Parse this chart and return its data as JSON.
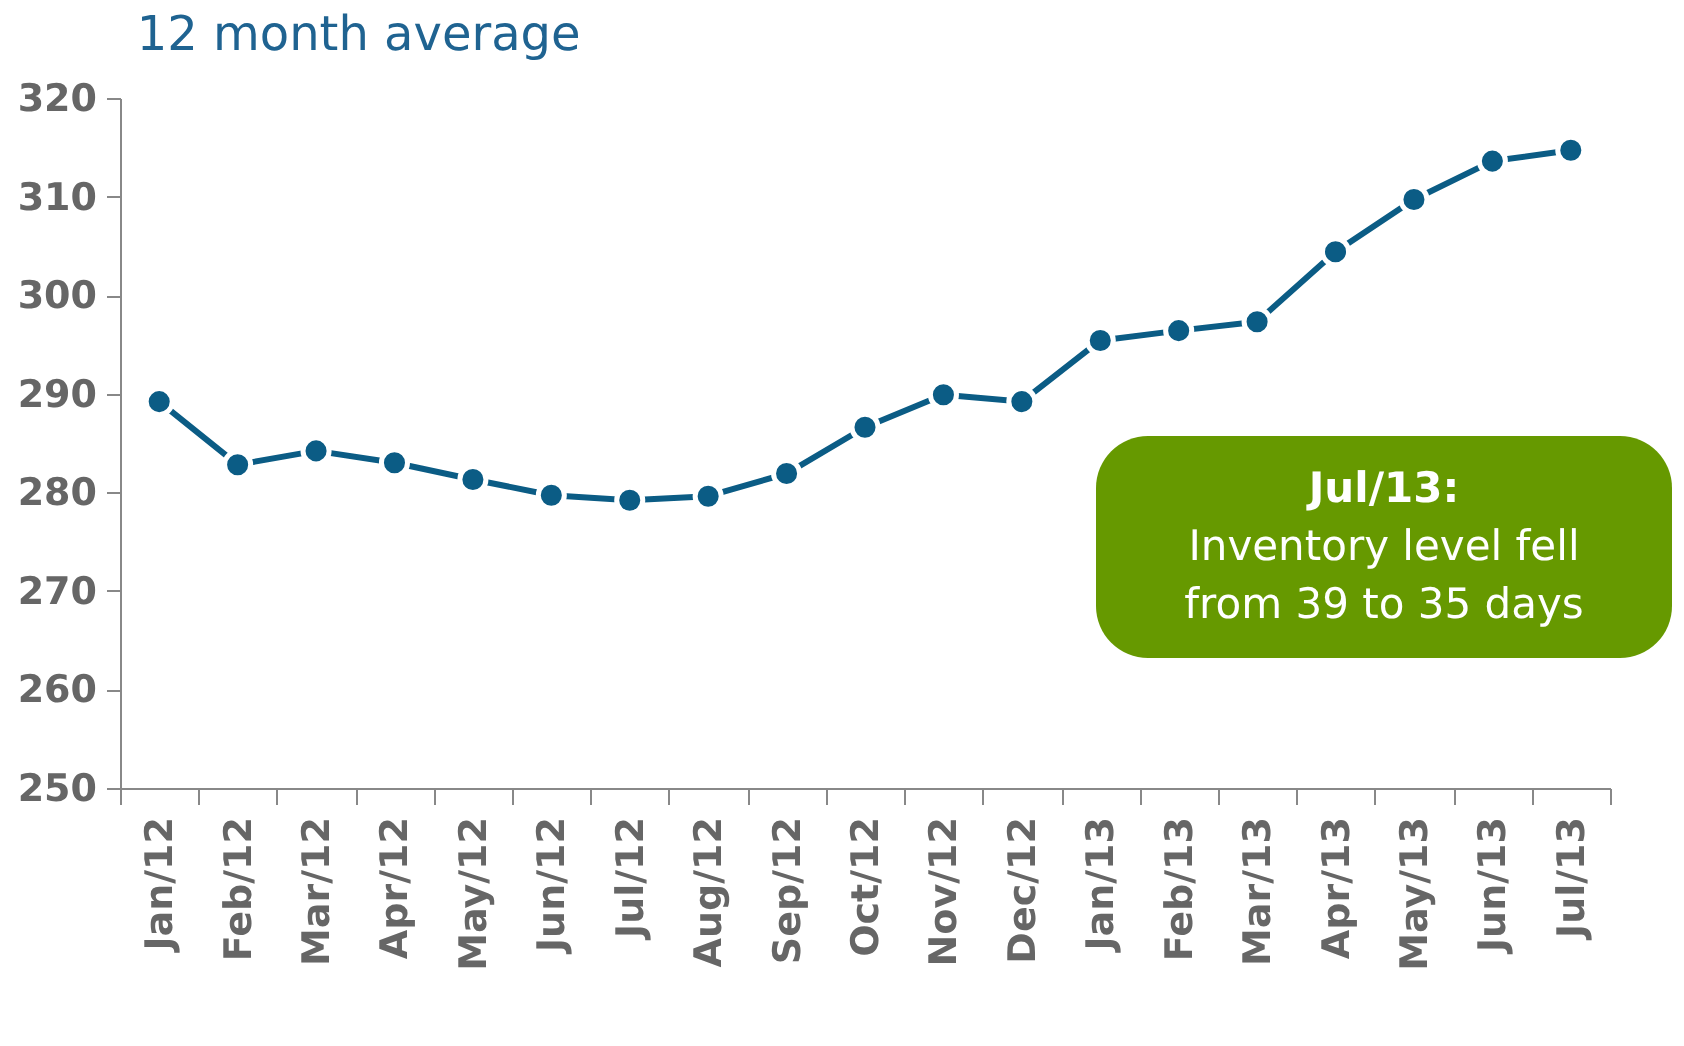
{
  "chart_data": {
    "type": "line",
    "title": "12 month average",
    "categories": [
      "Jan/12",
      "Feb/12",
      "Mar/12",
      "Apr/12",
      "May/12",
      "Jun/12",
      "Jul/12",
      "Aug/12",
      "Sep/12",
      "Oct/12",
      "Nov/12",
      "Dec/12",
      "Jan/13",
      "Feb/13",
      "Mar/13",
      "Apr/13",
      "May/13",
      "Jun/13",
      "Jul/13"
    ],
    "series": [
      {
        "color": "#0b5c85",
        "values": [
          289.2,
          282.8,
          284.2,
          283.0,
          281.3,
          279.7,
          279.2,
          279.6,
          281.9,
          286.6,
          289.9,
          289.2,
          295.4,
          296.4,
          297.3,
          304.4,
          309.7,
          313.6,
          314.7
        ]
      }
    ],
    "ylim": [
      250,
      320
    ],
    "yticks": [
      250,
      260,
      270,
      280,
      290,
      300,
      310,
      320
    ],
    "marker": "circle",
    "line_style": "solid",
    "annotations": [
      "Jul/13:\nInventory level fell\nfrom 39 to 35 days"
    ]
  }
}
